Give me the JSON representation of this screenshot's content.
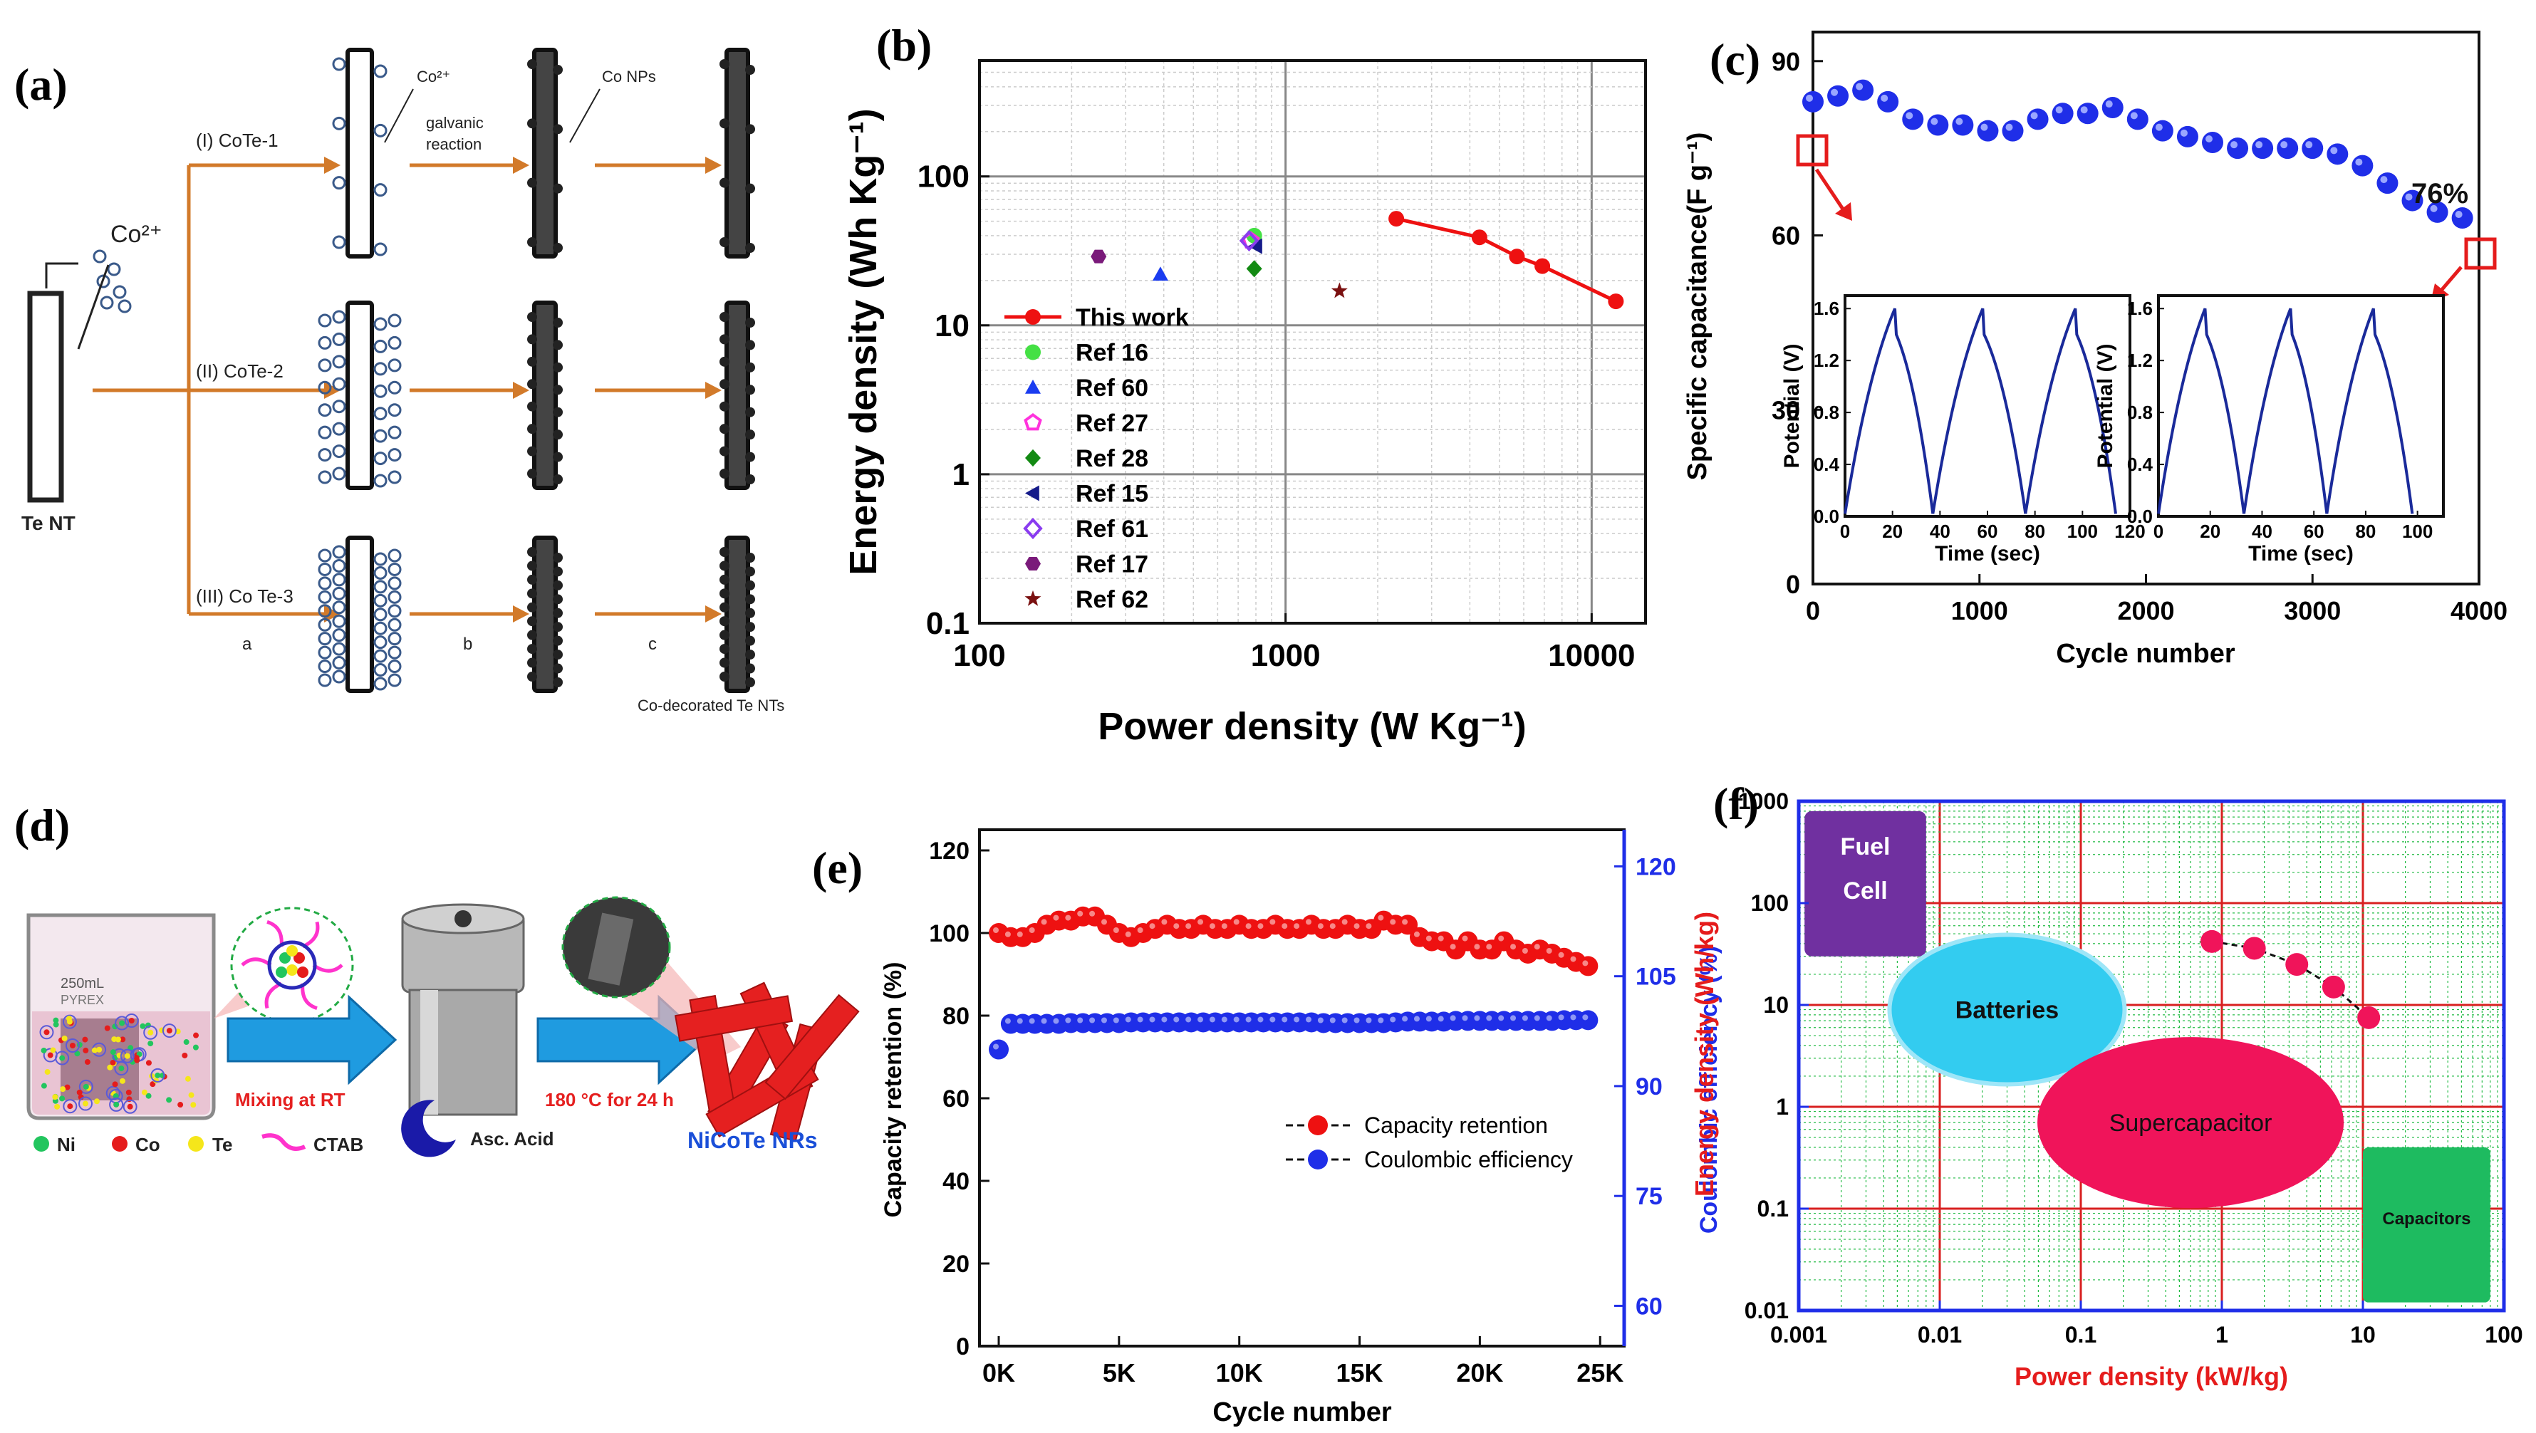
{
  "panel_labels": {
    "a": "(a)",
    "b": "(b)",
    "c": "(c)",
    "d": "(d)",
    "e": "(e)",
    "f": "(f)"
  },
  "schematic_a": {
    "cobalt_ion": "Co²⁺",
    "small_ion": "Co²⁺",
    "galvanic_line1": "galvanic",
    "galvanic_line2": "reaction",
    "co_nps": "Co NPs",
    "te_nt": "Te NT",
    "route1": "(I) CoTe-1",
    "route2": "(II) CoTe-2",
    "route3": "(III) Co Te-3",
    "step_a": "a",
    "step_b": "b",
    "step_c": "c",
    "product": "Co-decorated Te NTs"
  },
  "schematic_d": {
    "beaker_label": "250mL",
    "beaker_sub": "PYREX",
    "mixing": "Mixing at RT",
    "heating": "180 °C for 24 h",
    "product": "NiCoTe NRs",
    "legend_ni": "Ni",
    "legend_co": "Co",
    "legend_te": "Te",
    "legend_ctab": "CTAB",
    "legend_asc": "Asc. Acid",
    "colors": {
      "ni": "#22c55e",
      "co": "#e51c1c",
      "te": "#f5e61a",
      "ctab": "#ff33cc",
      "asc": "#1a1aa8",
      "arrow": "#1f9be0",
      "nrs": "#e52020"
    }
  },
  "chart_data": [
    {
      "id": "b",
      "type": "scatter",
      "xscale": "log",
      "yscale": "log",
      "xlim": [
        100,
        15000
      ],
      "ylim": [
        0.1,
        600
      ],
      "xlabel": "Power density (W Kg⁻¹)",
      "ylabel": "Energy density (Wh Kg⁻¹)",
      "xticks": [
        {
          "v": 100,
          "label": "100"
        },
        {
          "v": 1000,
          "label": "1000"
        },
        {
          "v": 10000,
          "label": "10000"
        }
      ],
      "yticks": [
        {
          "v": 0.1,
          "label": "0.1"
        },
        {
          "v": 1,
          "label": "1"
        },
        {
          "v": 10,
          "label": "10"
        },
        {
          "v": 100,
          "label": "100"
        }
      ],
      "legend_position": "left-center",
      "series": [
        {
          "name": "This work",
          "color": "#ee1111",
          "marker": "circle",
          "line": true,
          "points": [
            [
              2300,
              52
            ],
            [
              4300,
              39
            ],
            [
              5700,
              29
            ],
            [
              6900,
              25
            ],
            [
              12000,
              14.5
            ]
          ]
        },
        {
          "name": "Ref 16",
          "color": "#44e044",
          "marker": "circle",
          "points": [
            [
              790,
              40
            ]
          ]
        },
        {
          "name": "Ref 60",
          "color": "#1a3cf0",
          "marker": "triangle-up",
          "points": [
            [
              390,
              22
            ]
          ]
        },
        {
          "name": "Ref 27",
          "color": "#ff33dd",
          "marker": "pentagon-open",
          "points": [
            [
              770,
              37
            ]
          ]
        },
        {
          "name": "Ref 28",
          "color": "#138a13",
          "marker": "diamond",
          "points": [
            [
              790,
              24
            ]
          ]
        },
        {
          "name": "Ref 15",
          "color": "#151b8a",
          "marker": "triangle-left",
          "points": [
            [
              800,
              34
            ]
          ]
        },
        {
          "name": "Ref 61",
          "color": "#8a3cf0",
          "marker": "diamond-open",
          "points": [
            [
              760,
              37
            ]
          ]
        },
        {
          "name": "Ref 17",
          "color": "#7a1a7a",
          "marker": "hexagon",
          "points": [
            [
              245,
              29
            ]
          ]
        },
        {
          "name": "Ref 62",
          "color": "#7a1010",
          "marker": "star",
          "points": [
            [
              1500,
              17
            ]
          ]
        }
      ]
    },
    {
      "id": "c",
      "type": "scatter",
      "xlim": [
        0,
        4000
      ],
      "ylim": [
        0,
        95
      ],
      "xlabel": "Cycle number",
      "ylabel": "Specific capacitance(F g⁻¹)",
      "xticks": [
        0,
        1000,
        2000,
        3000,
        4000
      ],
      "yticks": [
        0,
        30,
        60,
        90
      ],
      "annotation": "76%",
      "color": "#1f2ee8",
      "x": [
        0,
        150,
        300,
        450,
        600,
        750,
        900,
        1050,
        1200,
        1350,
        1500,
        1650,
        1800,
        1950,
        2100,
        2250,
        2400,
        2550,
        2700,
        2850,
        3000,
        3150,
        3300,
        3450,
        3600,
        3750,
        3900
      ],
      "y": [
        83,
        84,
        85,
        83,
        80,
        79,
        79,
        78,
        78,
        80,
        81,
        81,
        82,
        80,
        78,
        77,
        76,
        75,
        75,
        75,
        75,
        74,
        72,
        69,
        66,
        64,
        63
      ],
      "insets": [
        {
          "xlabel": "Time (sec)",
          "ylabel": "Potential (V)",
          "xlim": [
            0,
            120
          ],
          "ylim": [
            0,
            1.7
          ],
          "xticks": [
            0,
            20,
            40,
            60,
            80,
            100,
            120
          ],
          "xtick_labels": [
            "0",
            "20",
            "40",
            "60",
            "80",
            "100",
            "120"
          ],
          "yticks": [
            0,
            0.4,
            0.8,
            1.2,
            1.6
          ],
          "ytick_labels": [
            "0.0",
            "0.4",
            "0.8",
            "1.2",
            "1.6"
          ],
          "cycles": [
            [
              0,
              21,
              37
            ],
            [
              37,
              58,
              76
            ],
            [
              76,
              97,
              114
            ]
          ]
        },
        {
          "xlabel": "Time (sec)",
          "ylabel": "Potential (V)",
          "xlim": [
            0,
            110
          ],
          "ylim": [
            0,
            1.7
          ],
          "xticks": [
            0,
            20,
            40,
            60,
            80,
            100
          ],
          "xtick_labels": [
            "0",
            "20",
            "40",
            "60",
            "80",
            "100"
          ],
          "yticks": [
            0,
            0.4,
            0.8,
            1.2,
            1.6
          ],
          "ytick_labels": [
            "0.0",
            "0.4",
            "0.8",
            "1.2",
            "1.6"
          ],
          "cycles": [
            [
              0,
              18,
              33
            ],
            [
              33,
              51,
              65
            ],
            [
              65,
              83,
              98
            ]
          ]
        }
      ]
    },
    {
      "id": "e",
      "type": "line",
      "xlim": [
        -800,
        26000
      ],
      "ylim": [
        0,
        125
      ],
      "y2lim": [
        54.5,
        125
      ],
      "xlabel": "Cycle number",
      "ylabel": "Capacity retention (%)",
      "y2label": "Coulombic efficiency (%)",
      "xticks": [
        {
          "v": 0,
          "label": "0K"
        },
        {
          "v": 5000,
          "label": "5K"
        },
        {
          "v": 10000,
          "label": "10K"
        },
        {
          "v": 15000,
          "label": "15K"
        },
        {
          "v": 20000,
          "label": "20K"
        },
        {
          "v": 25000,
          "label": "25K"
        }
      ],
      "yticks": [
        0,
        20,
        40,
        60,
        80,
        100,
        120
      ],
      "y2ticks": [
        60,
        75,
        90,
        105,
        120
      ],
      "legend_position": "bottom-right",
      "series": [
        {
          "name": "Capacity retention",
          "color": "#ee1111",
          "axis": "left",
          "x": [
            0,
            500,
            1000,
            1500,
            2000,
            2500,
            3000,
            3500,
            4000,
            4500,
            5000,
            5500,
            6000,
            6500,
            7000,
            7500,
            8000,
            8500,
            9000,
            9500,
            10000,
            10500,
            11000,
            11500,
            12000,
            12500,
            13000,
            13500,
            14000,
            14500,
            15000,
            15500,
            16000,
            16500,
            17000,
            17500,
            18000,
            18500,
            19000,
            19500,
            20000,
            20500,
            21000,
            21500,
            22000,
            22500,
            23000,
            23500,
            24000,
            24500
          ],
          "y": [
            100,
            99,
            99,
            100,
            102,
            103,
            103,
            104,
            104,
            102,
            100,
            99,
            100,
            101,
            102,
            101,
            101,
            102,
            101,
            101,
            102,
            101,
            101,
            102,
            101,
            101,
            102,
            101,
            101,
            102,
            101,
            101,
            103,
            102,
            102,
            99,
            98,
            98,
            96,
            98,
            96,
            96,
            98,
            96,
            95,
            96,
            95,
            94,
            93,
            92
          ]
        },
        {
          "name": "Coulombic efficiency",
          "color": "#1f2ee8",
          "axis": "right",
          "x": [
            0,
            500,
            1000,
            1500,
            2000,
            2500,
            3000,
            3500,
            4000,
            4500,
            5000,
            5500,
            6000,
            6500,
            7000,
            7500,
            8000,
            8500,
            9000,
            9500,
            10000,
            10500,
            11000,
            11500,
            12000,
            12500,
            13000,
            13500,
            14000,
            14500,
            15000,
            15500,
            16000,
            16500,
            17000,
            17500,
            18000,
            18500,
            19000,
            19500,
            20000,
            20500,
            21000,
            21500,
            22000,
            22500,
            23000,
            23500,
            24000,
            24500
          ],
          "y": [
            95,
            98.5,
            98.5,
            98.5,
            98.5,
            98.5,
            98.6,
            98.6,
            98.6,
            98.6,
            98.6,
            98.7,
            98.7,
            98.7,
            98.7,
            98.7,
            98.7,
            98.7,
            98.7,
            98.7,
            98.7,
            98.7,
            98.7,
            98.7,
            98.7,
            98.7,
            98.7,
            98.6,
            98.6,
            98.6,
            98.6,
            98.6,
            98.6,
            98.7,
            98.8,
            98.8,
            98.8,
            98.8,
            98.9,
            98.9,
            98.9,
            98.9,
            98.9,
            98.9,
            98.9,
            98.9,
            98.9,
            99,
            99,
            99
          ]
        }
      ]
    },
    {
      "id": "f",
      "type": "scatter",
      "xscale": "log",
      "yscale": "log",
      "xlim": [
        0.001,
        100
      ],
      "ylim": [
        0.01,
        1000
      ],
      "xlabel": "Power density (kW/kg)",
      "ylabel": "Energy density (Wh/kg)",
      "xticks": [
        {
          "v": 0.001,
          "label": "0.001"
        },
        {
          "v": 0.01,
          "label": "0.01"
        },
        {
          "v": 0.1,
          "label": "0.1"
        },
        {
          "v": 1,
          "label": "1"
        },
        {
          "v": 10,
          "label": "10"
        },
        {
          "v": 100,
          "label": "100"
        }
      ],
      "yticks": [
        {
          "v": 0.01,
          "label": "0.01"
        },
        {
          "v": 0.1,
          "label": "0.1"
        },
        {
          "v": 1,
          "label": "1"
        },
        {
          "v": 10,
          "label": "10"
        },
        {
          "v": 100,
          "label": "100"
        },
        {
          "v": 1000,
          "label": "1000"
        }
      ],
      "regions": {
        "fuel_cell": "Fuel Cell",
        "batteries": "Batteries",
        "supercapacitor": "Supercapacitor",
        "capacitors": "Capacitors"
      },
      "colors": {
        "fuel_cell": "#7030a0",
        "batteries": "#33ccf0",
        "supercapacitor": "#f0145a",
        "capacitors": "#1ebb60",
        "points": "#f0145a",
        "axis": "#1f2ee8",
        "xlabel": "#e51c1c",
        "grid": "#d82020",
        "minor_grid": "#22bb44"
      },
      "series": [
        {
          "name": "This work",
          "x": [
            0.85,
            1.7,
            3.4,
            6.2,
            11
          ],
          "y": [
            42,
            36,
            25,
            15,
            7.5
          ]
        }
      ]
    }
  ]
}
